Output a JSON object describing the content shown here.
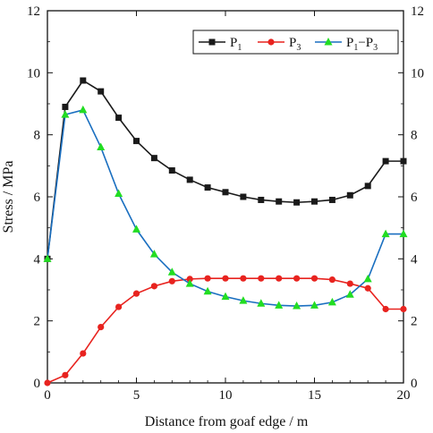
{
  "chart_data": {
    "type": "line",
    "xlabel": "Distance from goaf edge / m",
    "ylabel": "Stress / MPa",
    "xlim": [
      0,
      20
    ],
    "ylim": [
      0,
      12
    ],
    "x_ticks": [
      0,
      5,
      10,
      15,
      20
    ],
    "y_ticks": [
      0,
      2,
      4,
      6,
      8,
      10,
      12
    ],
    "right_axis_ticks": [
      0,
      2,
      4,
      6,
      8,
      10,
      12
    ],
    "legend_position": "top-right",
    "x": [
      0,
      1,
      2,
      3,
      4,
      5,
      6,
      7,
      8,
      9,
      10,
      11,
      12,
      13,
      14,
      15,
      16,
      17,
      18,
      19,
      20
    ],
    "series": [
      {
        "name": "P1",
        "legend_main": "P",
        "legend_sub": "1",
        "color": "#1a1a1a",
        "marker": "square",
        "values": [
          4.0,
          8.9,
          9.75,
          9.4,
          8.55,
          7.8,
          7.25,
          6.85,
          6.55,
          6.3,
          6.15,
          6.0,
          5.9,
          5.85,
          5.82,
          5.85,
          5.9,
          6.05,
          6.35,
          7.15,
          7.15
        ]
      },
      {
        "name": "P3",
        "legend_main": "P",
        "legend_sub": "3",
        "color": "#e8231f",
        "marker": "circle",
        "values": [
          0.0,
          0.25,
          0.95,
          1.8,
          2.45,
          2.88,
          3.12,
          3.28,
          3.35,
          3.37,
          3.37,
          3.37,
          3.37,
          3.37,
          3.37,
          3.37,
          3.33,
          3.2,
          3.05,
          2.38,
          2.38
        ]
      },
      {
        "name": "P1-P3",
        "legend_parts": [
          "P",
          "1",
          "−P",
          "3"
        ],
        "color": "#1a6fc0",
        "marker": "triangle",
        "marker_color": "#22dd22",
        "values": [
          4.0,
          8.65,
          8.8,
          7.6,
          6.1,
          4.95,
          4.15,
          3.57,
          3.2,
          2.95,
          2.78,
          2.65,
          2.56,
          2.5,
          2.48,
          2.5,
          2.6,
          2.85,
          3.35,
          4.8,
          4.8
        ]
      }
    ]
  }
}
